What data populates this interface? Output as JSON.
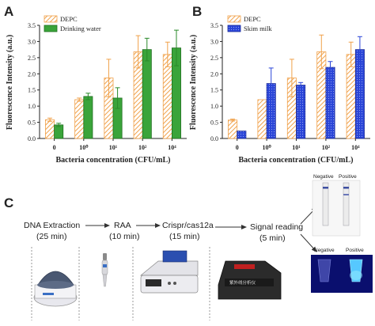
{
  "panels": {
    "a_letter": "A",
    "b_letter": "B",
    "c_letter": "C"
  },
  "chart_data": [
    {
      "type": "bar",
      "panel": "A",
      "categories": [
        "0",
        "10⁰",
        "10¹",
        "10²",
        "10⁴"
      ],
      "xlabel": "Bacteria concentration (CFU/mL)",
      "ylabel": "Fluorescence Intensity (a.u.)",
      "ylim": [
        0,
        3.5
      ],
      "yticks": [
        "0.0",
        "0.5",
        "1.0",
        "1.5",
        "2.0",
        "2.5",
        "3.0",
        "3.5"
      ],
      "legend_position": "top-left",
      "series": [
        {
          "name": "DEPC",
          "color": "#f0a14a",
          "pattern": "hatched",
          "values": [
            0.58,
            1.2,
            1.87,
            2.68,
            2.6
          ],
          "errors": [
            0.05,
            0.05,
            0.58,
            0.5,
            0.38
          ]
        },
        {
          "name": "Drinking water",
          "color": "#3aa43a",
          "pattern": "solid",
          "values": [
            0.42,
            1.3,
            1.25,
            2.75,
            2.8
          ],
          "errors": [
            0.05,
            0.1,
            0.32,
            0.35,
            0.55
          ]
        }
      ]
    },
    {
      "type": "bar",
      "panel": "B",
      "categories": [
        "0",
        "10⁰",
        "10¹",
        "10²",
        "10⁴"
      ],
      "xlabel": "Bacteria concentration (CFU/mL)",
      "ylabel": "Fluorescence Intensity (a.u.)",
      "ylim": [
        0,
        3.5
      ],
      "yticks": [
        "0.0",
        "0.5",
        "1.0",
        "1.5",
        "2.0",
        "2.5",
        "3.0",
        "3.5"
      ],
      "legend_position": "top-left",
      "series": [
        {
          "name": "DEPC",
          "color": "#f0a14a",
          "pattern": "hatched",
          "values": [
            0.57,
            1.2,
            1.87,
            2.68,
            2.6
          ],
          "errors": [
            0.03,
            0.0,
            0.58,
            0.52,
            0.38
          ]
        },
        {
          "name": "Skim milk",
          "color": "#2a45d8",
          "pattern": "dotted",
          "values": [
            0.23,
            1.7,
            1.65,
            2.2,
            2.75
          ],
          "errors": [
            0.0,
            0.48,
            0.08,
            0.18,
            0.4
          ]
        }
      ]
    }
  ],
  "workflow": {
    "steps": [
      {
        "name": "DNA Extraction",
        "time": "(25 min)"
      },
      {
        "name": "RAA",
        "time": "(10 min)"
      },
      {
        "name": "Crispr/cas12a",
        "time": "(15 min)"
      },
      {
        "name": "Signal reading",
        "time": "(5 min)"
      }
    ],
    "result_labels": {
      "negative": "Negative",
      "positive": "Positive"
    }
  },
  "colors": {
    "arrow": "#333333",
    "dashed": "#999999",
    "uv_background": "#0a0f6e"
  }
}
